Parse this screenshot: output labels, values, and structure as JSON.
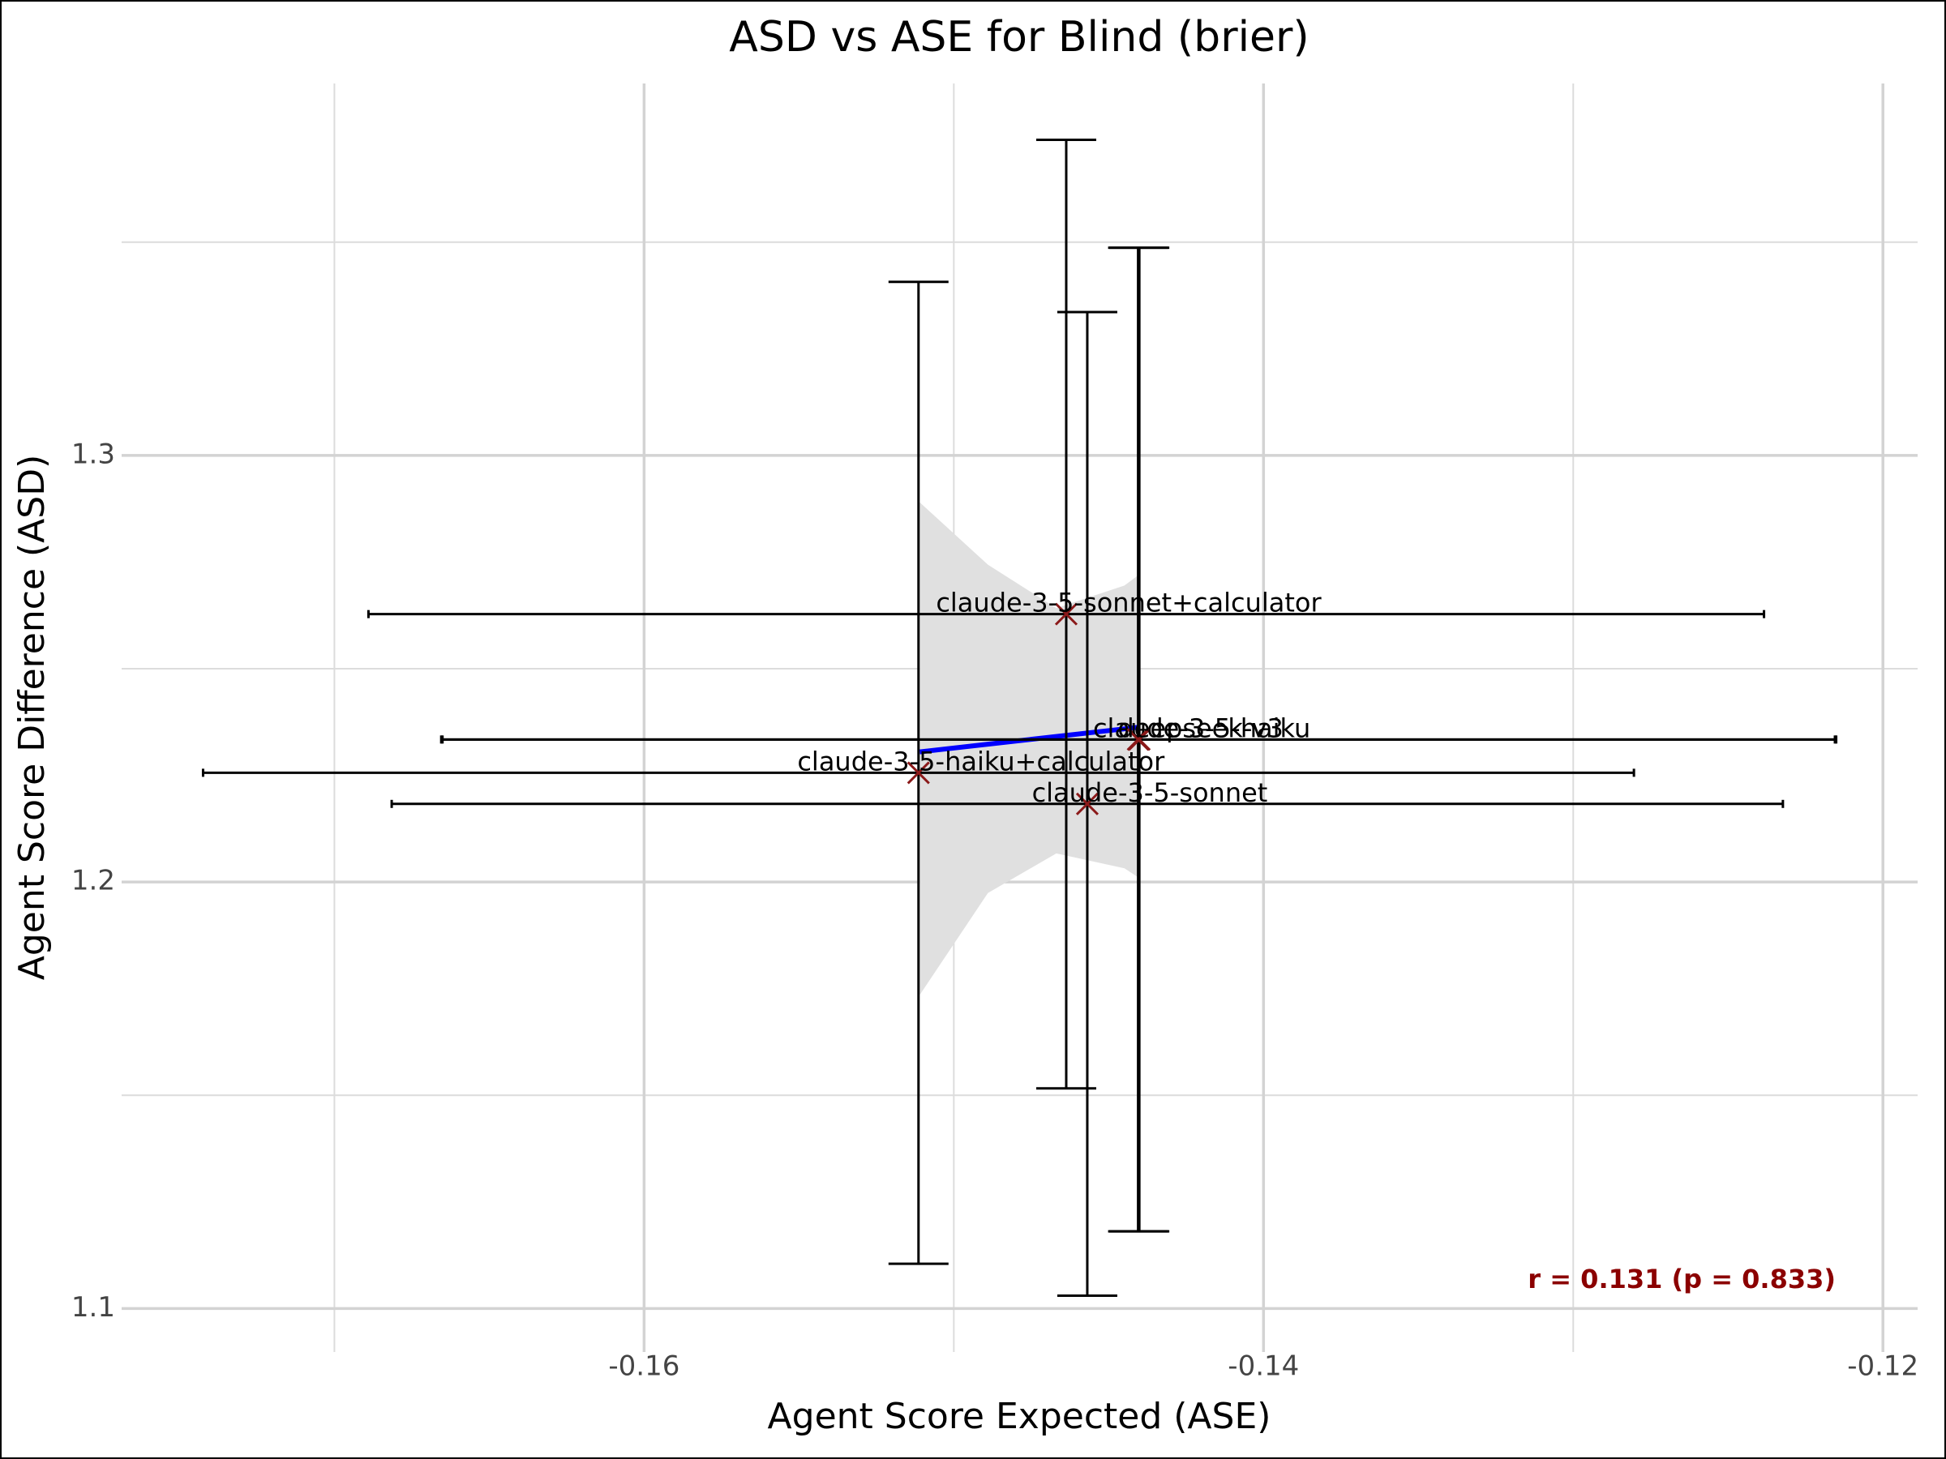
{
  "chart_data": {
    "type": "scatter",
    "title": "ASD vs ASE for Blind (brier)",
    "x_label": "Agent Score Expected (ASE)",
    "y_label": "Agent Score Difference (ASD)",
    "points": {
      "labels": [
        "claude-3-5-sonnet+calculator",
        "claude-3-5-haiku",
        "deepseek-v3",
        "claude-3-5-haiku+calculator",
        "claude-3-5-sonnet"
      ],
      "x": [
        -0.14637,
        -0.14401,
        -0.14405,
        -0.15114,
        -0.14569
      ],
      "y": [
        1.2628,
        1.2334,
        1.2334,
        1.2256,
        1.2183
      ],
      "xerr": [
        0.02253,
        0.0225,
        0.0225,
        0.0231,
        0.02246
      ],
      "yerr": [
        0.1112,
        0.1153,
        0.1153,
        0.1151,
        0.1153
      ],
      "color": "#8b1a1a",
      "errorbar_color": "#000000"
    },
    "fit": {
      "x": [
        -0.1511,
        -0.1489,
        -0.14669,
        -0.14449,
        -0.14401
      ],
      "y": [
        1.2305,
        1.2323,
        1.2341,
        1.2359,
        1.2363
      ],
      "upper": [
        1.289,
        1.2744,
        1.2642,
        1.2695,
        1.2721
      ],
      "lower": [
        1.1735,
        1.1974,
        1.2067,
        1.2032,
        1.2009
      ],
      "color": "#0000ff",
      "band_color": "#e0e0e0"
    },
    "annotation": {
      "text": "r = 0.131 (p = 0.833)",
      "color": "#8b0000"
    },
    "xlim": [
      -0.17687,
      -0.11888
    ],
    "ylim": [
      1.0898,
      1.3872
    ],
    "xticks": [
      -0.16,
      -0.14,
      -0.12
    ],
    "yticks": [
      1.1,
      1.2,
      1.3
    ],
    "x_minor_ticks": [
      -0.17,
      -0.15,
      -0.13
    ],
    "y_minor_ticks": [
      1.15,
      1.25,
      1.35
    ],
    "grid": true
  }
}
